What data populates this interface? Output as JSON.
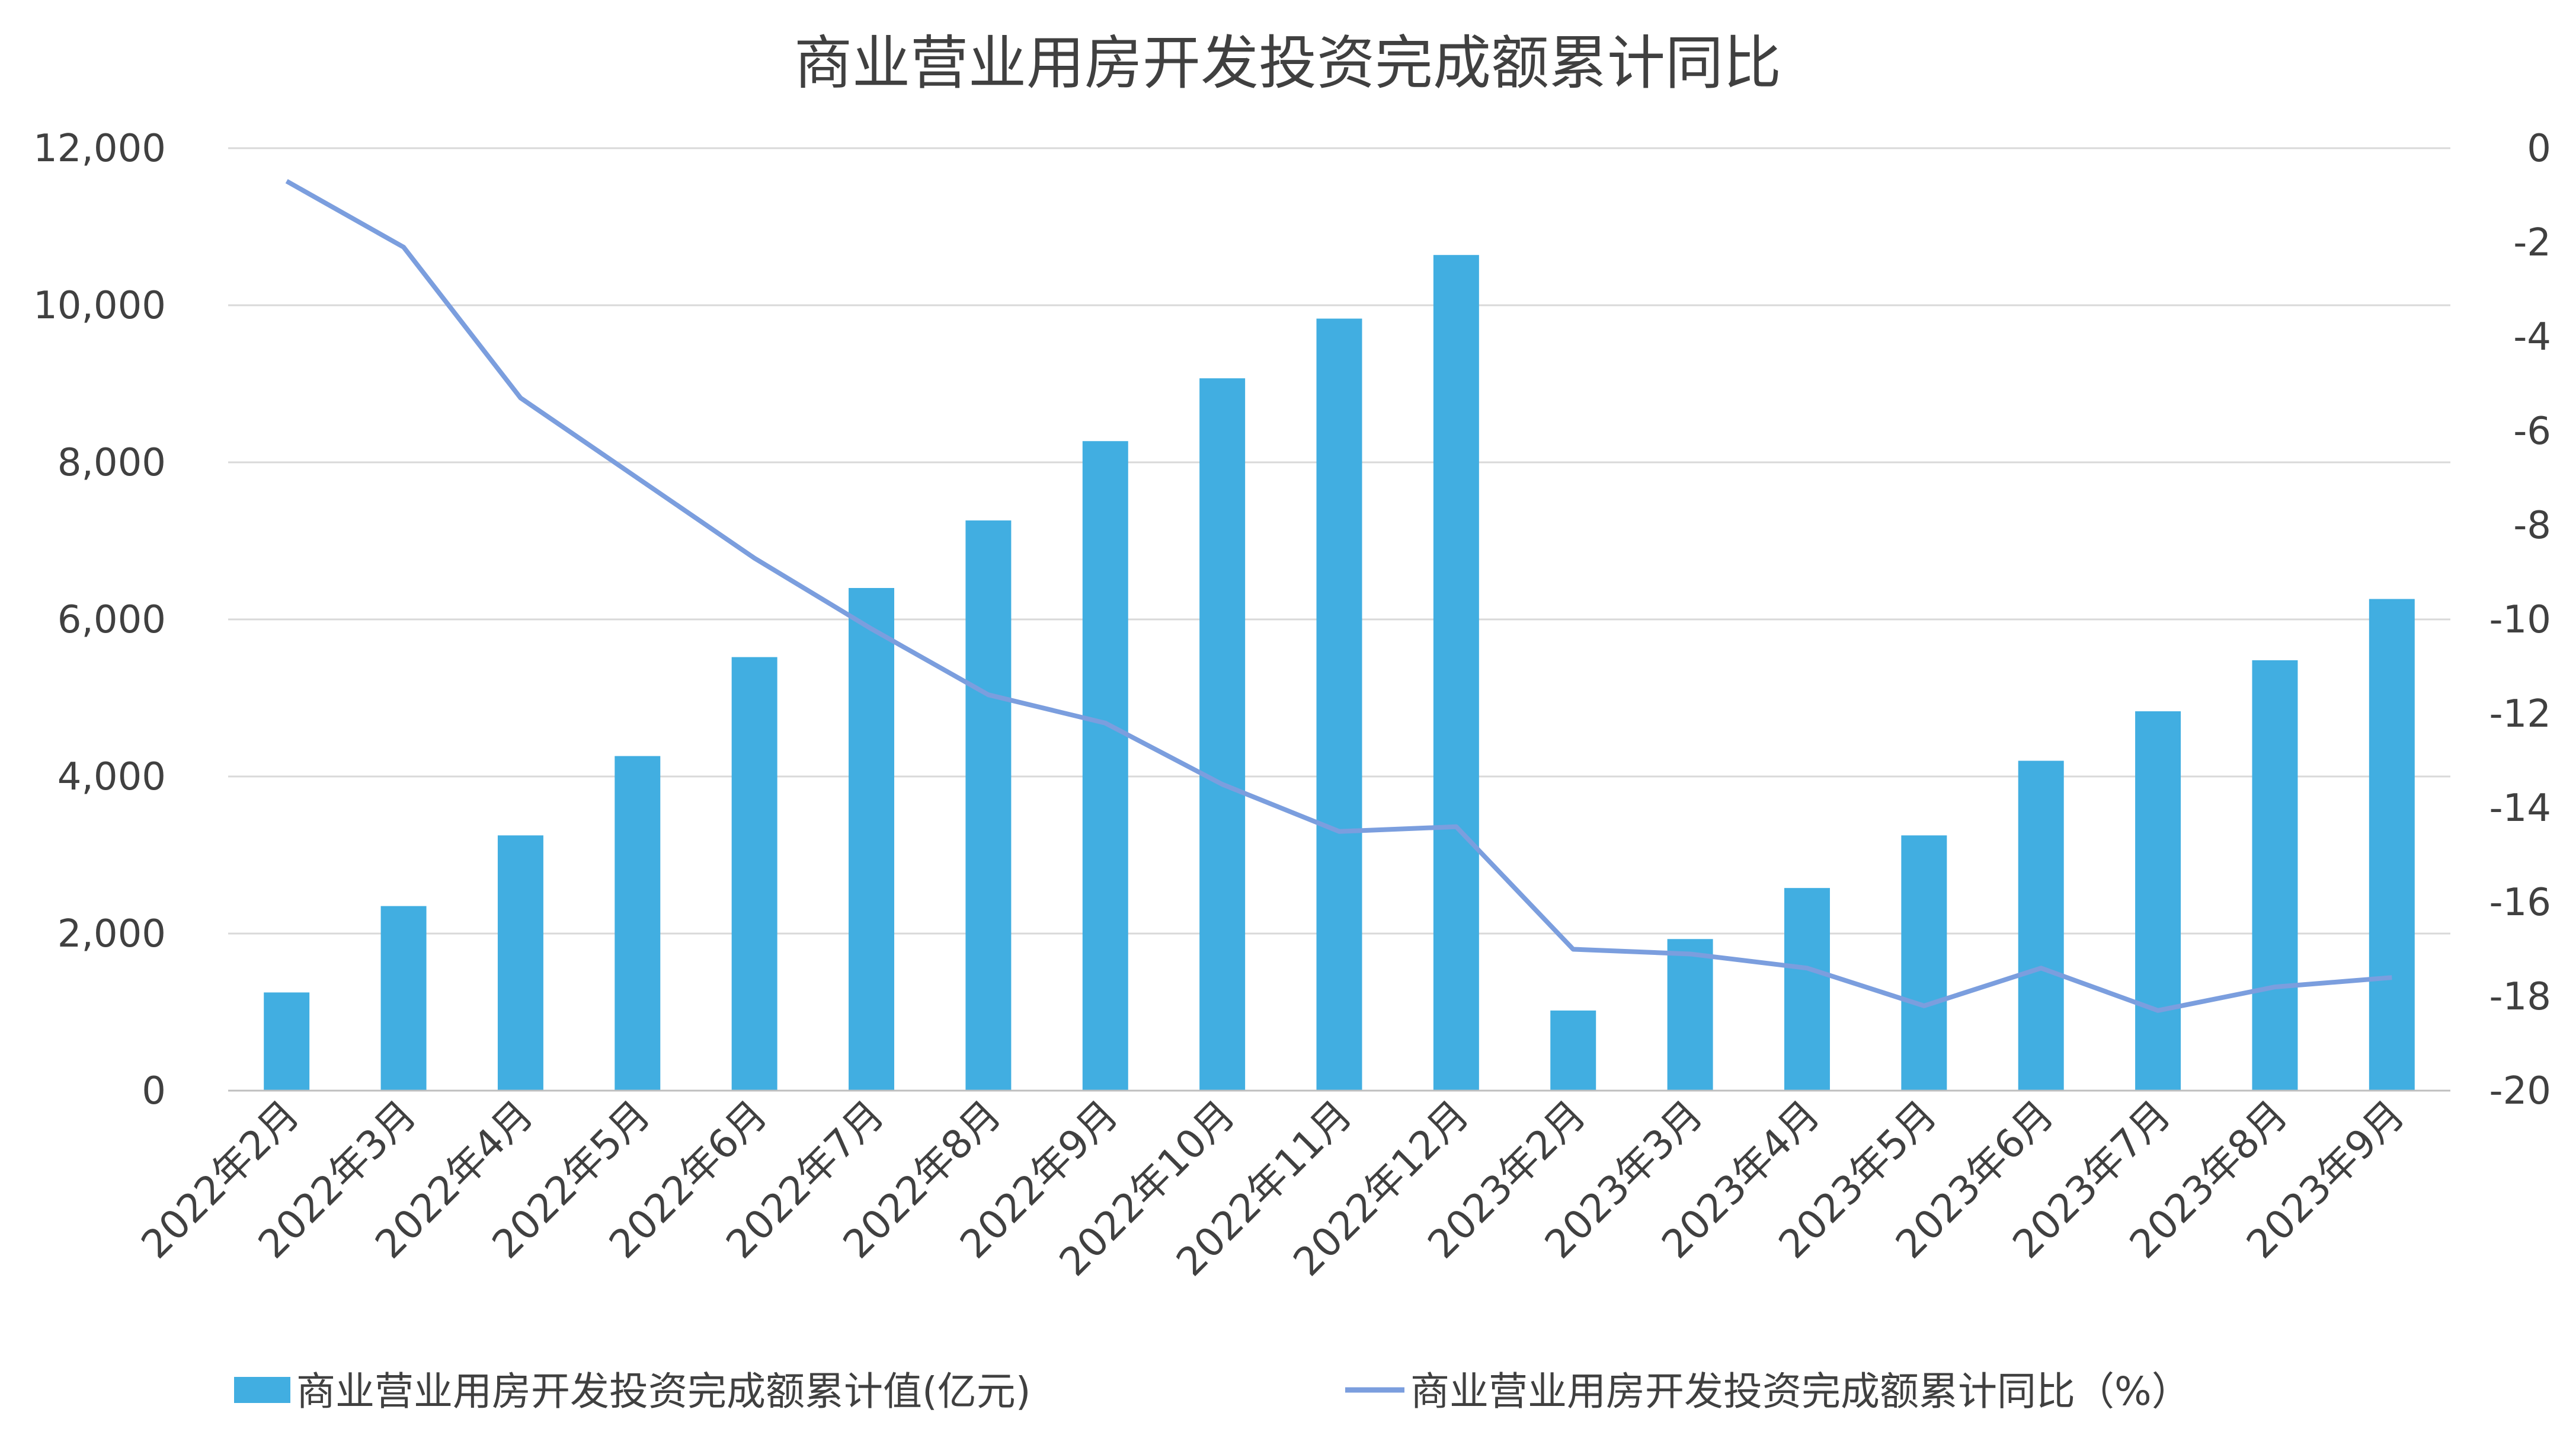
{
  "chart_data": {
    "type": "bar+line",
    "title": "商业营业用房开发投资完成额累计同比",
    "categories": [
      "2022年2月",
      "2022年3月",
      "2022年4月",
      "2022年5月",
      "2022年6月",
      "2022年7月",
      "2022年8月",
      "2022年9月",
      "2022年10月",
      "2022年11月",
      "2022年12月",
      "2023年2月",
      "2023年3月",
      "2023年4月",
      "2023年5月",
      "2023年6月",
      "2023年7月",
      "2023年8月",
      "2023年9月"
    ],
    "series": [
      {
        "name": "商业营业用房开发投资完成额累计值(亿元)",
        "type": "bar",
        "axis": "left",
        "color": "#41AEE1",
        "values": [
          1250,
          2350,
          3250,
          4260,
          5520,
          6400,
          7260,
          8270,
          9070,
          9830,
          10640,
          1020,
          1930,
          2580,
          3250,
          4200,
          4830,
          5480,
          6260
        ]
      },
      {
        "name": "商业营业用房开发投资完成额累计同比（%）",
        "type": "line",
        "axis": "right",
        "color": "#7B9EDE",
        "values": [
          -0.7,
          -2.1,
          -5.3,
          -7.0,
          -8.7,
          -10.2,
          -11.6,
          -12.2,
          -13.5,
          -14.5,
          -14.4,
          -17.0,
          -17.1,
          -17.4,
          -18.2,
          -17.4,
          -18.3,
          -17.8,
          -17.6
        ]
      }
    ],
    "y_left": {
      "ylim": [
        0,
        12000
      ],
      "ticks": [
        "0",
        "2,000",
        "4,000",
        "6,000",
        "8,000",
        "10,000",
        "12,000"
      ]
    },
    "y_right": {
      "ylim": [
        -20,
        0
      ],
      "ticks": [
        "-20",
        "-18",
        "-16",
        "-14",
        "-12",
        "-10",
        "-8",
        "-6",
        "-4",
        "-2",
        "0"
      ]
    },
    "grid": true,
    "legend": "bottom"
  }
}
